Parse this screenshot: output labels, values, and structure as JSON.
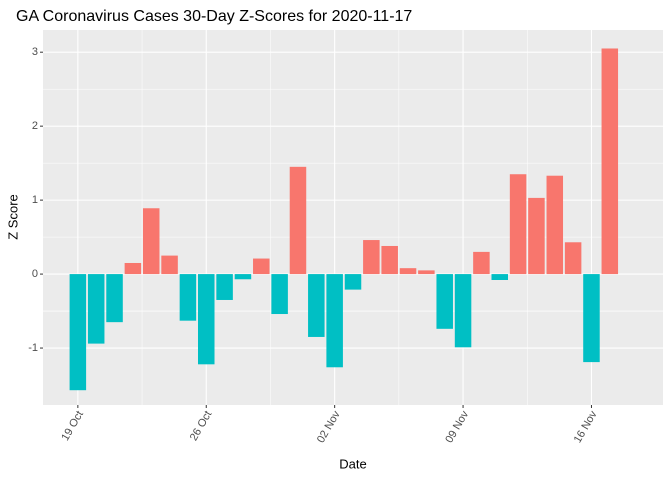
{
  "chart_data": {
    "type": "bar",
    "title": "GA Coronavirus Cases 30-Day Z-Scores for 2020-11-17",
    "x_label": "Date",
    "y_label": "Z Score",
    "categories": [
      "19 Oct",
      null,
      null,
      null,
      null,
      null,
      null,
      "26 Oct",
      null,
      null,
      null,
      null,
      null,
      null,
      "02 Nov",
      null,
      null,
      null,
      null,
      null,
      null,
      "09 Nov",
      null,
      null,
      null,
      null,
      null,
      null,
      "16 Nov",
      null
    ],
    "values": [
      -1.57,
      -0.94,
      -0.65,
      0.15,
      0.89,
      0.25,
      -0.63,
      -1.22,
      -0.35,
      -0.07,
      0.21,
      -0.54,
      1.45,
      -0.85,
      -1.26,
      -0.21,
      0.46,
      0.38,
      0.08,
      0.05,
      -0.74,
      -0.99,
      0.3,
      -0.08,
      1.35,
      1.03,
      1.33,
      0.43,
      -1.19,
      3.05
    ],
    "positive_color": "#F8766D",
    "negative_color": "#00BFC4",
    "ylim": [
      -1.77,
      3.3
    ],
    "yticks": [
      -1,
      0,
      1,
      2,
      3
    ],
    "grid": true
  }
}
